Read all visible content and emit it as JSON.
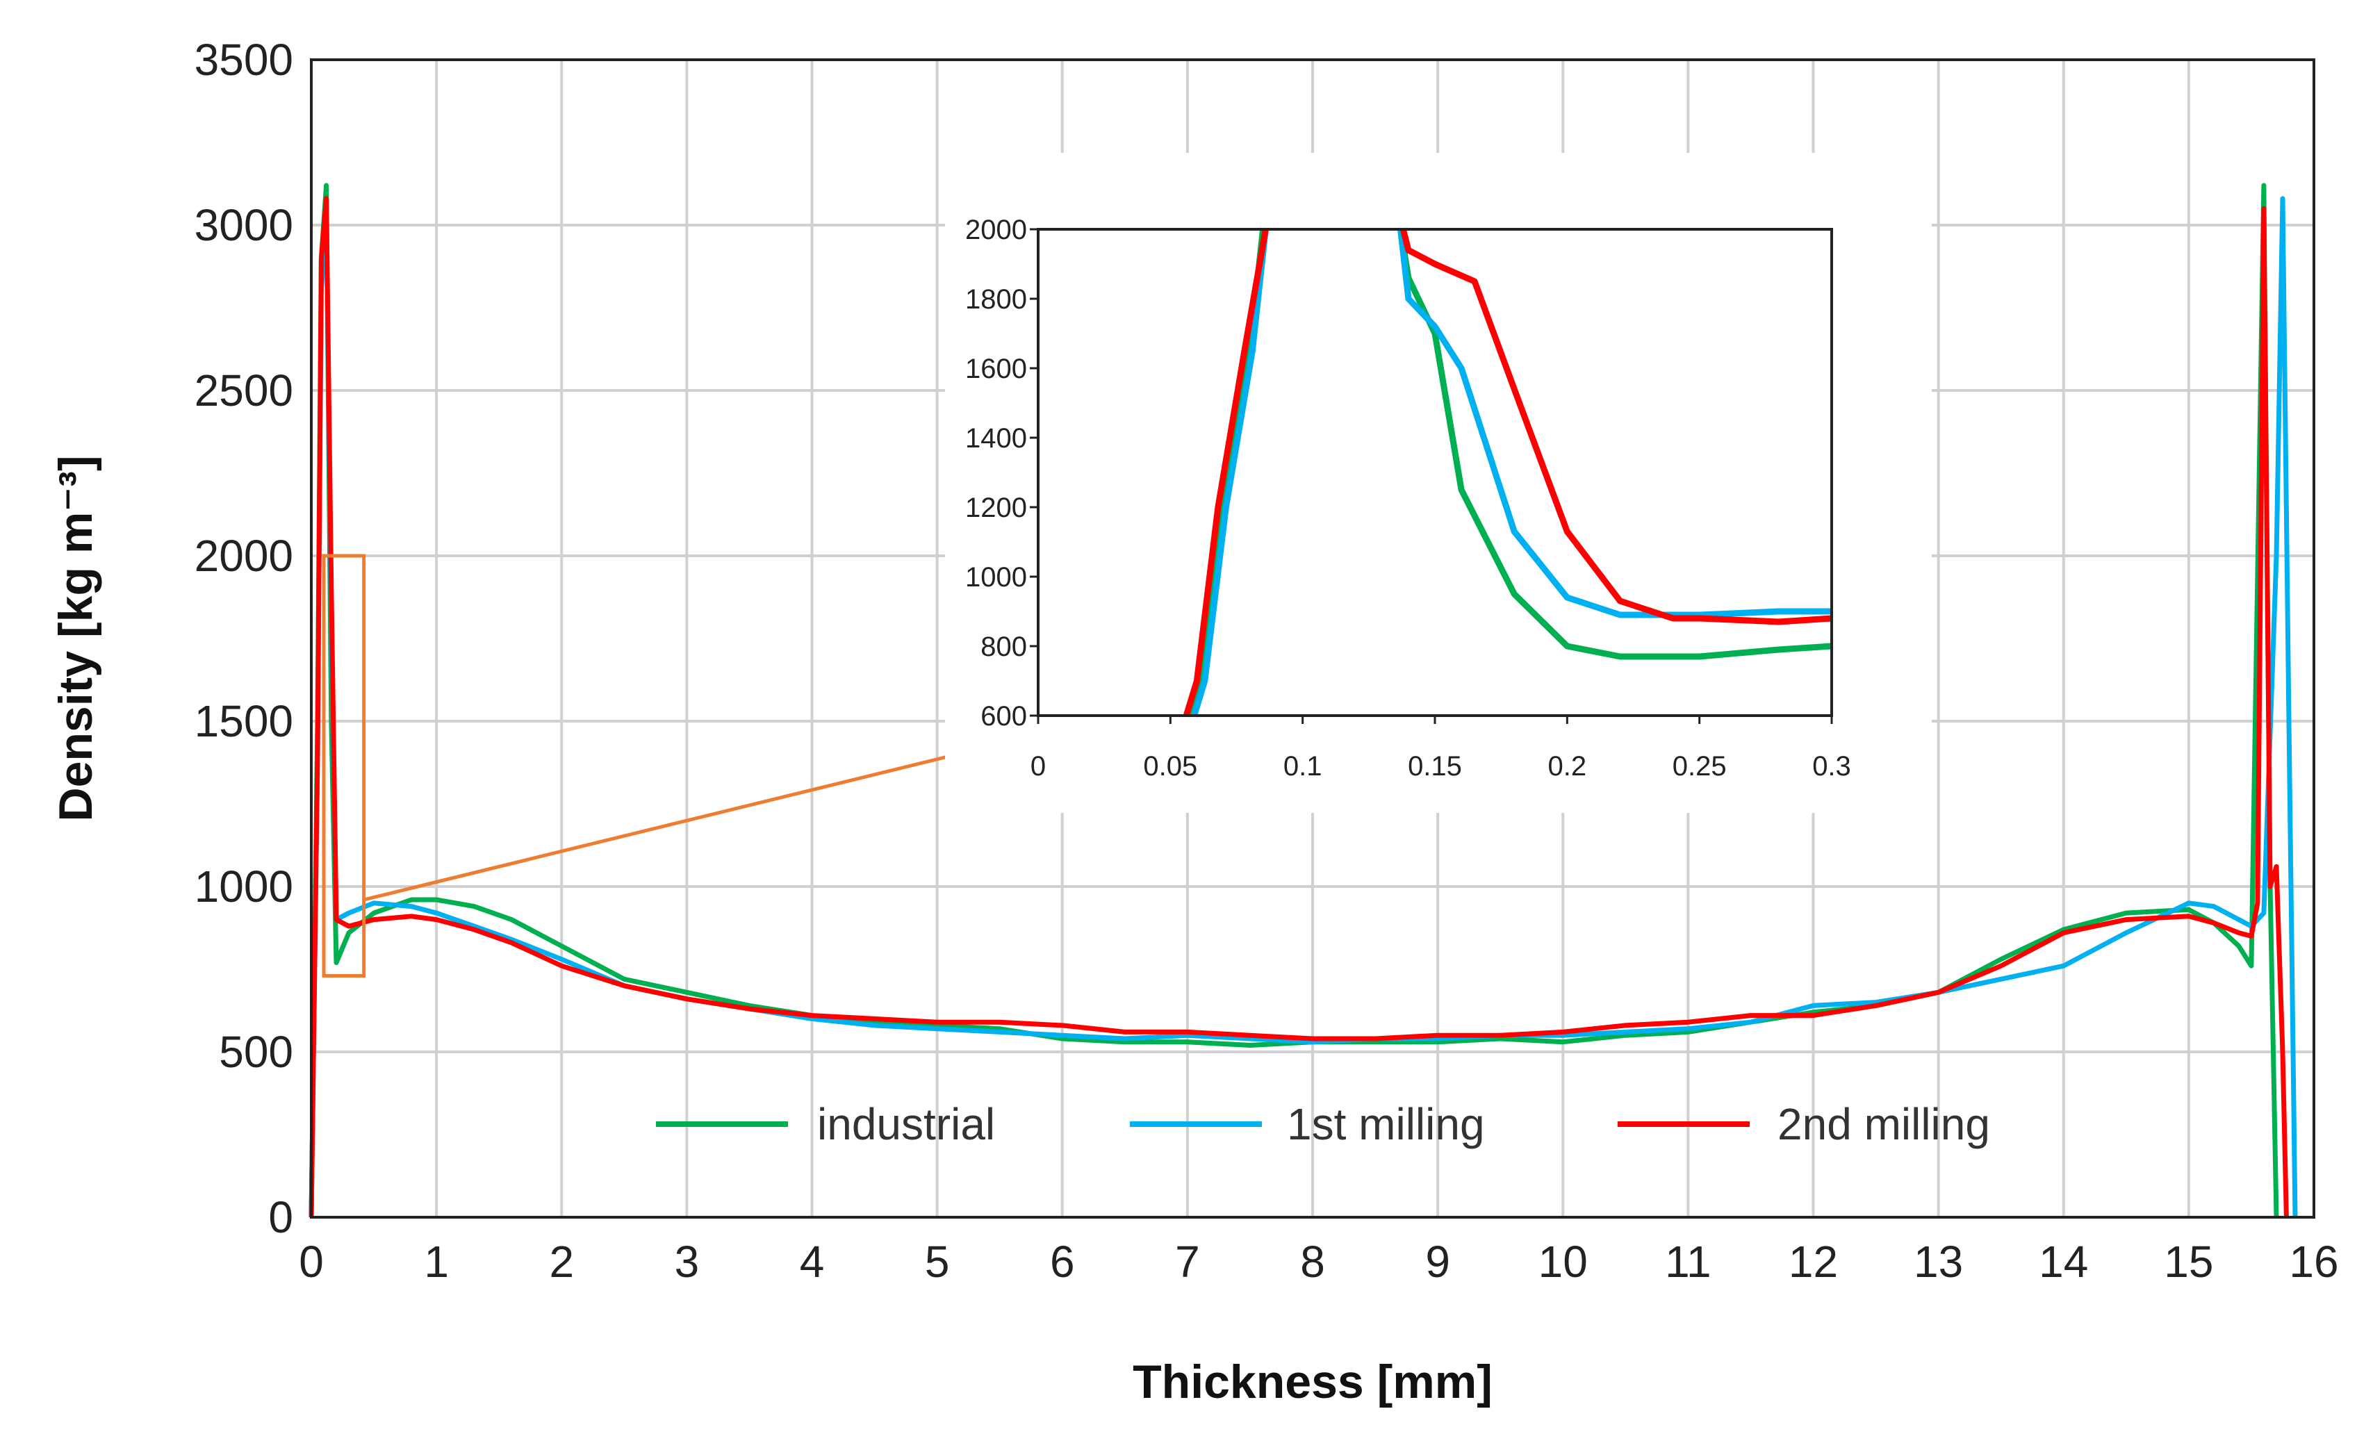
{
  "chart_data": [
    {
      "type": "line",
      "title": "",
      "xlabel": "Thickness [mm]",
      "ylabel": "Density [kg m⁻³]",
      "xlim": [
        0,
        16
      ],
      "ylim": [
        0,
        3500
      ],
      "xticks": [
        "0",
        "1",
        "2",
        "3",
        "4",
        "5",
        "6",
        "7",
        "8",
        "9",
        "10",
        "11",
        "12",
        "13",
        "14",
        "15",
        "16"
      ],
      "yticks": [
        "0",
        "500",
        "1000",
        "1500",
        "2000",
        "2500",
        "3000",
        "3500"
      ],
      "grid": true,
      "legend_position": "bottom-center",
      "series": [
        {
          "name": "industrial",
          "color": "#00b050",
          "x": [
            0.0,
            0.05,
            0.08,
            0.12,
            0.16,
            0.2,
            0.3,
            0.5,
            0.8,
            1.0,
            1.3,
            1.6,
            2.0,
            2.5,
            3.0,
            3.5,
            4.0,
            4.5,
            5.0,
            5.5,
            6.0,
            6.5,
            7.0,
            7.5,
            8.0,
            8.5,
            9.0,
            9.5,
            10.0,
            10.5,
            11.0,
            11.5,
            12.0,
            12.5,
            13.0,
            13.5,
            14.0,
            14.5,
            15.0,
            15.2,
            15.4,
            15.5,
            15.6,
            15.65,
            15.7
          ],
          "y": [
            0,
            1500,
            2900,
            3120,
            1500,
            770,
            860,
            920,
            960,
            960,
            940,
            900,
            820,
            720,
            680,
            640,
            610,
            590,
            580,
            570,
            540,
            530,
            530,
            520,
            530,
            530,
            530,
            540,
            530,
            550,
            560,
            590,
            620,
            640,
            680,
            780,
            870,
            920,
            930,
            890,
            820,
            760,
            3120,
            1000,
            0
          ]
        },
        {
          "name": "1st milling",
          "color": "#00b0f0",
          "x": [
            0.0,
            0.05,
            0.08,
            0.12,
            0.16,
            0.2,
            0.3,
            0.5,
            0.8,
            1.0,
            1.3,
            1.6,
            2.0,
            2.5,
            3.0,
            3.5,
            4.0,
            4.5,
            5.0,
            5.5,
            6.0,
            6.5,
            7.0,
            7.5,
            8.0,
            8.5,
            9.0,
            9.5,
            10.0,
            10.5,
            11.0,
            11.5,
            12.0,
            12.5,
            13.0,
            13.5,
            14.0,
            14.5,
            15.0,
            15.2,
            15.4,
            15.5,
            15.6,
            15.7,
            15.75,
            15.8,
            15.85
          ],
          "y": [
            0,
            1400,
            2800,
            3050,
            1800,
            900,
            920,
            950,
            940,
            920,
            880,
            840,
            780,
            700,
            660,
            630,
            600,
            580,
            570,
            560,
            550,
            540,
            550,
            540,
            530,
            540,
            540,
            550,
            550,
            560,
            570,
            590,
            640,
            650,
            680,
            720,
            760,
            860,
            950,
            940,
            900,
            880,
            920,
            2000,
            3080,
            1500,
            0
          ]
        },
        {
          "name": "2nd milling",
          "color": "#ff0000",
          "x": [
            0.0,
            0.05,
            0.08,
            0.12,
            0.16,
            0.2,
            0.3,
            0.5,
            0.8,
            1.0,
            1.3,
            1.6,
            2.0,
            2.5,
            3.0,
            3.5,
            4.0,
            4.5,
            5.0,
            5.5,
            6.0,
            6.5,
            7.0,
            7.5,
            8.0,
            8.5,
            9.0,
            9.5,
            10.0,
            10.5,
            11.0,
            11.5,
            12.0,
            12.5,
            13.0,
            13.5,
            14.0,
            14.5,
            15.0,
            15.2,
            15.4,
            15.5,
            15.55,
            15.6,
            15.65,
            15.7,
            15.75,
            15.78
          ],
          "y": [
            0,
            1400,
            2900,
            3080,
            1900,
            900,
            880,
            900,
            910,
            900,
            870,
            830,
            760,
            700,
            660,
            630,
            610,
            600,
            590,
            590,
            580,
            560,
            560,
            550,
            540,
            540,
            550,
            550,
            560,
            580,
            590,
            610,
            610,
            640,
            680,
            760,
            860,
            900,
            910,
            890,
            860,
            850,
            950,
            3050,
            1000,
            1060,
            500,
            0
          ]
        }
      ],
      "highlight_box": {
        "x_range": [
          0.1,
          0.42
        ],
        "y_range": [
          730,
          2000
        ],
        "color": "#ed7d31"
      }
    },
    {
      "type": "line",
      "title": "",
      "role": "inset",
      "xlim": [
        0,
        0.3
      ],
      "ylim": [
        600,
        2000
      ],
      "xticks": [
        "0",
        "0.05",
        "0.1",
        "0.15",
        "0.2",
        "0.25",
        "0.3"
      ],
      "yticks": [
        "600",
        "800",
        "1000",
        "1200",
        "1400",
        "1600",
        "1800",
        "2000"
      ],
      "series": [
        {
          "name": "industrial",
          "color": "#00b050",
          "x": [
            0.058,
            0.062,
            0.07,
            0.08,
            0.085
          ],
          "y": [
            600,
            700,
            1200,
            1650,
            2000
          ],
          "x2": [
            0.137,
            0.14,
            0.15,
            0.16,
            0.18,
            0.2,
            0.22,
            0.25,
            0.28,
            0.3
          ],
          "y2": [
            2000,
            1860,
            1700,
            1250,
            950,
            800,
            770,
            770,
            790,
            800
          ]
        },
        {
          "name": "1st milling",
          "color": "#00b0f0",
          "x": [
            0.059,
            0.063,
            0.071,
            0.081,
            0.086
          ],
          "y": [
            600,
            700,
            1200,
            1650,
            2000
          ],
          "x2": [
            0.137,
            0.14,
            0.15,
            0.16,
            0.18,
            0.2,
            0.22,
            0.25,
            0.28,
            0.3
          ],
          "y2": [
            2000,
            1800,
            1720,
            1600,
            1130,
            940,
            890,
            890,
            900,
            900
          ]
        },
        {
          "name": "2nd milling",
          "color": "#ff0000",
          "x": [
            0.056,
            0.06,
            0.068,
            0.078,
            0.086
          ],
          "y": [
            600,
            700,
            1200,
            1650,
            2000
          ],
          "x2": [
            0.138,
            0.14,
            0.15,
            0.165,
            0.18,
            0.2,
            0.22,
            0.24,
            0.25,
            0.28,
            0.3
          ],
          "y2": [
            2000,
            1940,
            1900,
            1850,
            1540,
            1130,
            930,
            880,
            880,
            870,
            880
          ]
        }
      ]
    }
  ]
}
